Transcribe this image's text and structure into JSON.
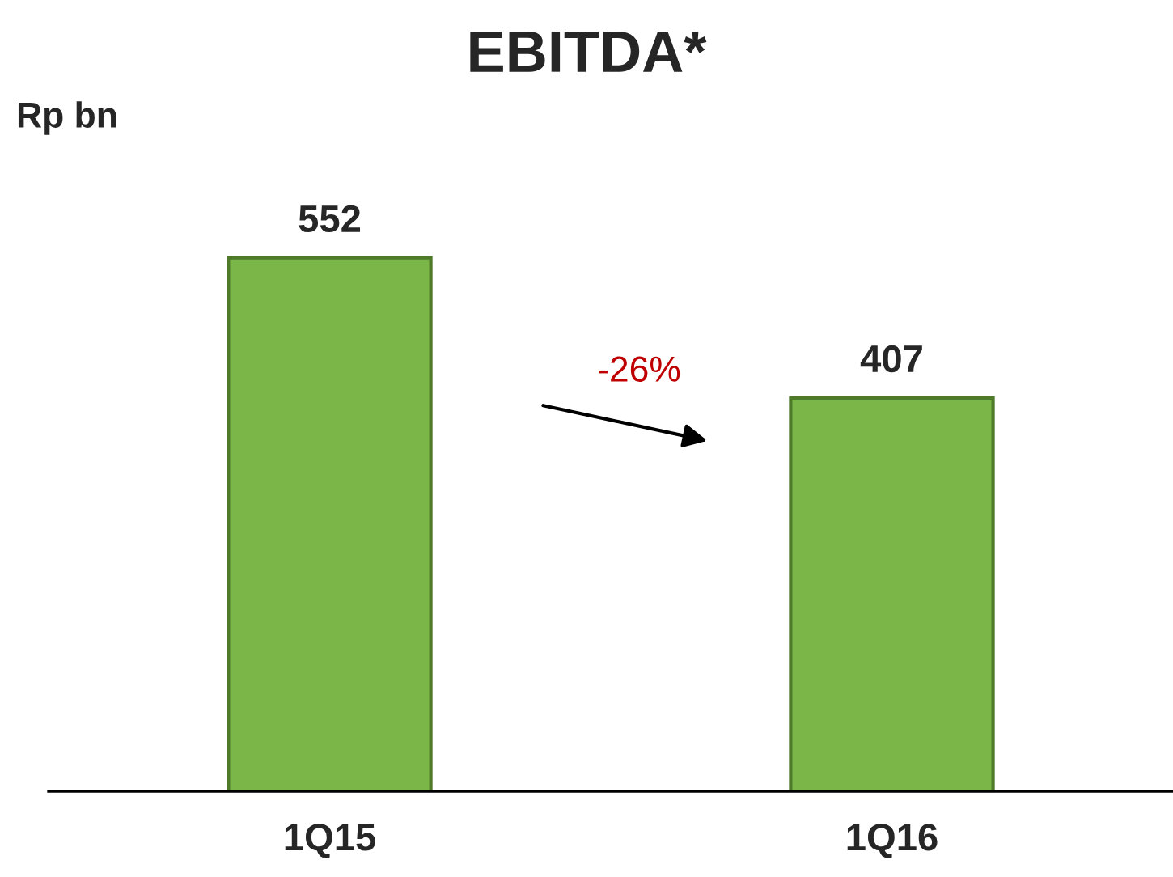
{
  "chart_data": {
    "type": "bar",
    "title": "EBITDA*",
    "ylabel": "Rp bn",
    "categories": [
      "1Q15",
      "1Q16"
    ],
    "values": [
      552,
      407
    ],
    "color": "#7ab648",
    "data_labels": true,
    "grid": false,
    "legend": false,
    "tick_labels": "x",
    "annotations": [
      "-26%"
    ]
  }
}
